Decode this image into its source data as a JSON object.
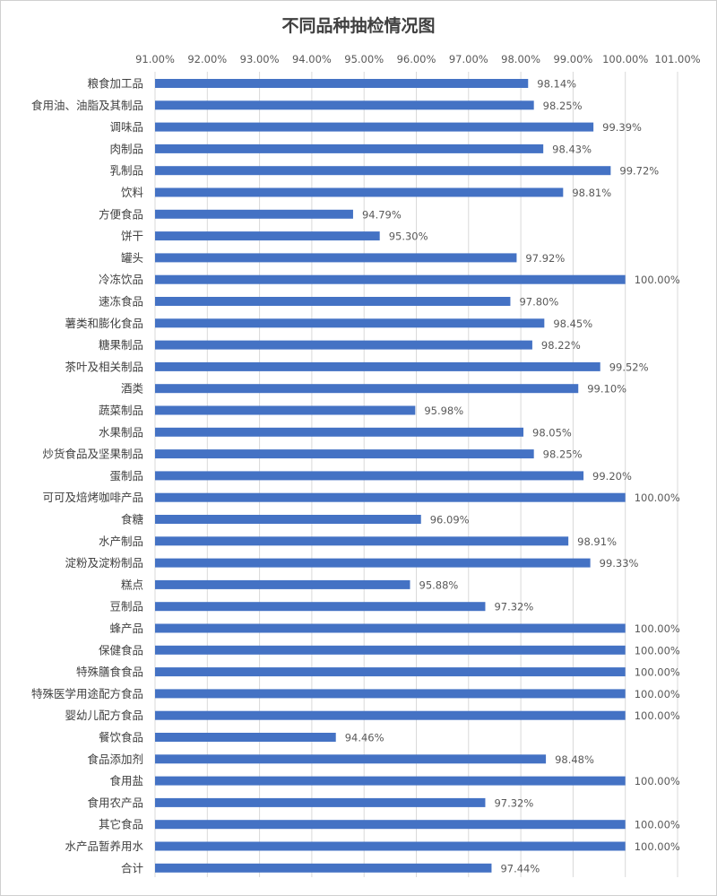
{
  "chart_data": {
    "type": "bar",
    "orientation": "horizontal",
    "title": "不同品种抽检情况图",
    "xlim": [
      91.0,
      101.0
    ],
    "x_ticks": [
      "91.00%",
      "92.00%",
      "93.00%",
      "94.00%",
      "95.00%",
      "96.00%",
      "97.00%",
      "98.00%",
      "99.00%",
      "100.00%",
      "101.00%"
    ],
    "x_axis_position": "top",
    "grid": true,
    "legend": "none",
    "bar_color": "#4472C4",
    "categories": [
      "粮食加工品",
      "食用油、油脂及其制品",
      "调味品",
      "肉制品",
      "乳制品",
      "饮料",
      "方便食品",
      "饼干",
      "罐头",
      "冷冻饮品",
      "速冻食品",
      "薯类和膨化食品",
      "糖果制品",
      "茶叶及相关制品",
      "酒类",
      "蔬菜制品",
      "水果制品",
      "炒货食品及坚果制品",
      "蛋制品",
      "可可及焙烤咖啡产品",
      "食糖",
      "水产制品",
      "淀粉及淀粉制品",
      "糕点",
      "豆制品",
      "蜂产品",
      "保健食品",
      "特殊膳食食品",
      "特殊医学用途配方食品",
      "婴幼儿配方食品",
      "餐饮食品",
      "食品添加剂",
      "食用盐",
      "食用农产品",
      "其它食品",
      "水产品暂养用水",
      "合计"
    ],
    "values": [
      98.14,
      98.25,
      99.39,
      98.43,
      99.72,
      98.81,
      94.79,
      95.3,
      97.92,
      100.0,
      97.8,
      98.45,
      98.22,
      99.52,
      99.1,
      95.98,
      98.05,
      98.25,
      99.2,
      100.0,
      96.09,
      98.91,
      99.33,
      95.88,
      97.32,
      100.0,
      100.0,
      100.0,
      100.0,
      100.0,
      94.46,
      98.48,
      100.0,
      97.32,
      100.0,
      100.0,
      97.44
    ],
    "data_labels": [
      "98.14%",
      "98.25%",
      "99.39%",
      "98.43%",
      "99.72%",
      "98.81%",
      "94.79%",
      "95.30%",
      "97.92%",
      "100.00%",
      "97.80%",
      "98.45%",
      "98.22%",
      "99.52%",
      "99.10%",
      "95.98%",
      "98.05%",
      "98.25%",
      "99.20%",
      "100.00%",
      "96.09%",
      "98.91%",
      "99.33%",
      "95.88%",
      "97.32%",
      "100.00%",
      "100.00%",
      "100.00%",
      "100.00%",
      "100.00%",
      "94.46%",
      "98.48%",
      "100.00%",
      "97.32%",
      "100.00%",
      "100.00%",
      "97.44%"
    ]
  }
}
